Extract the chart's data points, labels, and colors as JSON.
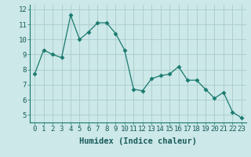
{
  "x": [
    0,
    1,
    2,
    3,
    4,
    5,
    6,
    7,
    8,
    9,
    10,
    11,
    12,
    13,
    14,
    15,
    16,
    17,
    18,
    19,
    20,
    21,
    22,
    23
  ],
  "y": [
    7.7,
    9.3,
    9.0,
    8.8,
    11.6,
    10.0,
    10.5,
    11.1,
    11.1,
    10.4,
    9.3,
    6.7,
    6.6,
    7.4,
    7.6,
    7.7,
    8.2,
    7.3,
    7.3,
    6.7,
    6.1,
    6.5,
    5.2,
    4.8
  ],
  "line_color": "#1a7a6e",
  "marker": "D",
  "marker_size": 2.5,
  "bg_color": "#cce8e8",
  "grid_color": "#aacccc",
  "xlabel": "Humidex (Indice chaleur)",
  "ylim": [
    4.5,
    12.3
  ],
  "xlim": [
    -0.5,
    23.5
  ],
  "yticks": [
    5,
    6,
    7,
    8,
    9,
    10,
    11,
    12
  ],
  "xticks": [
    0,
    1,
    2,
    3,
    4,
    5,
    6,
    7,
    8,
    9,
    10,
    11,
    12,
    13,
    14,
    15,
    16,
    17,
    18,
    19,
    20,
    21,
    22,
    23
  ],
  "xlabel_fontsize": 7.5,
  "tick_fontsize": 6.5
}
